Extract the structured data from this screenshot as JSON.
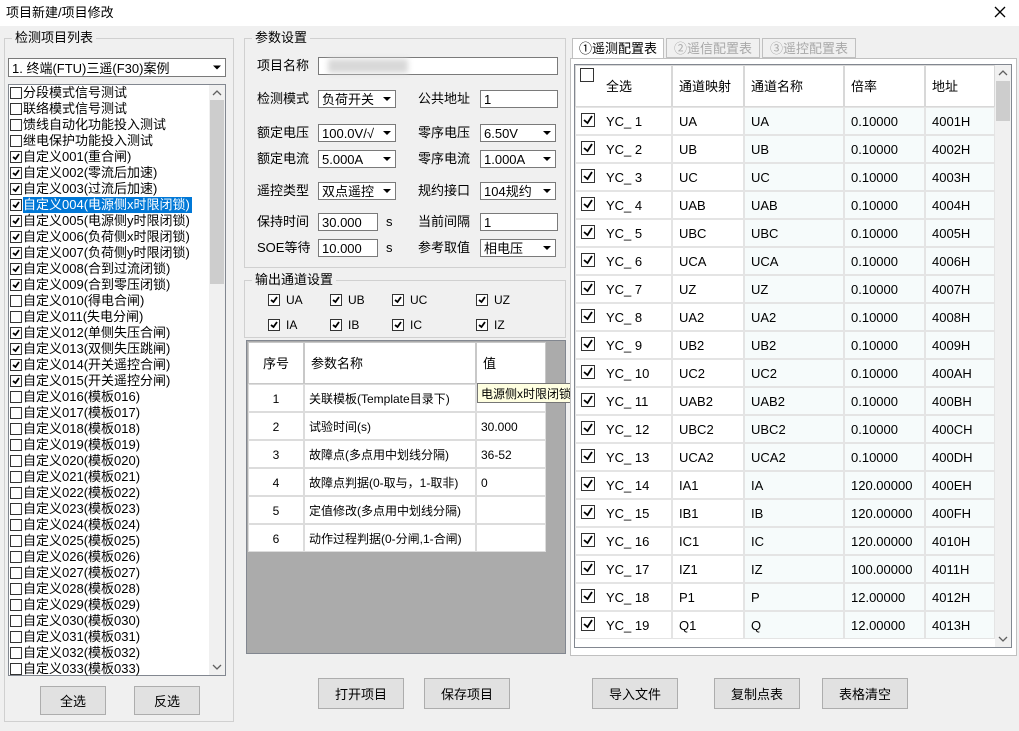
{
  "window": {
    "title": "项目新建/项目修改"
  },
  "item_list": {
    "title": "检测项目列表",
    "selector": "1. 终端(FTU)三遥(F30)案例",
    "selected_index": 7,
    "items": [
      {
        "label": "分段模式信号测试",
        "checked": false
      },
      {
        "label": "联络模式信号测试",
        "checked": false
      },
      {
        "label": "馈线自动化功能投入测试",
        "checked": false
      },
      {
        "label": "继电保护功能投入测试",
        "checked": false
      },
      {
        "label": "自定义001(重合闸)",
        "checked": true
      },
      {
        "label": "自定义002(零流后加速)",
        "checked": true
      },
      {
        "label": "自定义003(过流后加速)",
        "checked": true
      },
      {
        "label": "自定义004(电源侧x时限闭锁)",
        "checked": true
      },
      {
        "label": "自定义005(电源侧y时限闭锁)",
        "checked": true
      },
      {
        "label": "自定义006(负荷侧x时限闭锁)",
        "checked": true
      },
      {
        "label": "自定义007(负荷侧y时限闭锁)",
        "checked": true
      },
      {
        "label": "自定义008(合到过流闭锁)",
        "checked": true
      },
      {
        "label": "自定义009(合到零压闭锁)",
        "checked": true
      },
      {
        "label": "自定义010(得电合闸)",
        "checked": false
      },
      {
        "label": "自定义011(失电分闸)",
        "checked": false
      },
      {
        "label": "自定义012(单侧失压合闸)",
        "checked": true
      },
      {
        "label": "自定义013(双侧失压跳闸)",
        "checked": true
      },
      {
        "label": "自定义014(开关遥控合闸)",
        "checked": true
      },
      {
        "label": "自定义015(开关遥控分闸)",
        "checked": true
      },
      {
        "label": "自定义016(模板016)",
        "checked": false
      },
      {
        "label": "自定义017(模板017)",
        "checked": false
      },
      {
        "label": "自定义018(模板018)",
        "checked": false
      },
      {
        "label": "自定义019(模板019)",
        "checked": false
      },
      {
        "label": "自定义020(模板020)",
        "checked": false
      },
      {
        "label": "自定义021(模板021)",
        "checked": false
      },
      {
        "label": "自定义022(模板022)",
        "checked": false
      },
      {
        "label": "自定义023(模板023)",
        "checked": false
      },
      {
        "label": "自定义024(模板024)",
        "checked": false
      },
      {
        "label": "自定义025(模板025)",
        "checked": false
      },
      {
        "label": "自定义026(模板026)",
        "checked": false
      },
      {
        "label": "自定义027(模板027)",
        "checked": false
      },
      {
        "label": "自定义028(模板028)",
        "checked": false
      },
      {
        "label": "自定义029(模板029)",
        "checked": false
      },
      {
        "label": "自定义030(模板030)",
        "checked": false
      },
      {
        "label": "自定义031(模板031)",
        "checked": false
      },
      {
        "label": "自定义032(模板032)",
        "checked": false
      },
      {
        "label": "自定义033(模板033)",
        "checked": false
      }
    ],
    "buttons": [
      "全选",
      "反选"
    ]
  },
  "params": {
    "title": "参数设置",
    "fields": [
      {
        "label": "项目名称",
        "kind": "input"
      },
      {
        "label": "检测模式",
        "value": "负荷开关",
        "kind": "combo"
      },
      {
        "label": "公共地址",
        "value": "1",
        "kind": "input"
      },
      {
        "label": "额定电压",
        "value": "100.0V/√",
        "kind": "combo"
      },
      {
        "label": "零序电压",
        "value": "6.50V",
        "kind": "combo"
      },
      {
        "label": "额定电流",
        "value": "5.000A",
        "kind": "combo"
      },
      {
        "label": "零序电流",
        "value": "1.000A",
        "kind": "combo"
      },
      {
        "label": "遥控类型",
        "value": "双点遥控",
        "kind": "combo"
      },
      {
        "label": "规约接口",
        "value": "104规约",
        "kind": "combo"
      },
      {
        "label": "保持时间",
        "value": "30.000",
        "kind": "input",
        "unit": "s"
      },
      {
        "label": "当前间隔",
        "value": "1",
        "kind": "input"
      },
      {
        "label": "SOE等待",
        "value": "10.000",
        "kind": "input",
        "unit": "s"
      },
      {
        "label": "参考取值",
        "value": "相电压",
        "kind": "combo"
      }
    ]
  },
  "channels": {
    "title": "输出通道设置",
    "items": [
      {
        "label": "UA",
        "checked": true
      },
      {
        "label": "UB",
        "checked": true
      },
      {
        "label": "UC",
        "checked": true
      },
      {
        "label": "UZ",
        "checked": true
      },
      {
        "label": "IA",
        "checked": true
      },
      {
        "label": "IB",
        "checked": true
      },
      {
        "label": "IC",
        "checked": true
      },
      {
        "label": "IZ",
        "checked": true
      }
    ]
  },
  "param_table": {
    "columns": [
      "序号",
      "参数名称",
      "值"
    ],
    "rows": [
      [
        "1",
        "关联模板(Template目录下)"
      ],
      [
        "2",
        "试验时间(s)",
        "30.000"
      ],
      [
        "3",
        "故障点(多点用中划线分隔)",
        "36-52"
      ],
      [
        "4",
        "故障点判据(0-取与，1-取非)",
        "0"
      ],
      [
        "5",
        "定值修改(多点用中划线分隔)"
      ],
      [
        "6",
        "动作过程判据(0-分闸,1-合闸)"
      ]
    ],
    "tooltip": "电源侧x时限闭锁"
  },
  "actions": [
    "打开项目",
    "保存项目",
    "导入文件",
    "复制点表",
    "表格清空"
  ],
  "config": {
    "tabs": [
      {
        "label": "①遥测配置表",
        "active": true
      },
      {
        "label": "②遥信配置表",
        "active": false
      },
      {
        "label": "③遥控配置表",
        "active": false
      }
    ],
    "columns": [
      "全选",
      "通道映射",
      "通道名称",
      "倍率",
      "地址"
    ],
    "rows": [
      {
        "checked": true,
        "cells": [
          "YC_ 1",
          "UA",
          "UA",
          "0.10000",
          "4001H"
        ]
      },
      {
        "checked": true,
        "cells": [
          "YC_ 2",
          "UB",
          "UB",
          "0.10000",
          "4002H"
        ]
      },
      {
        "checked": true,
        "cells": [
          "YC_ 3",
          "UC",
          "UC",
          "0.10000",
          "4003H"
        ]
      },
      {
        "checked": true,
        "cells": [
          "YC_ 4",
          "UAB",
          "UAB",
          "0.10000",
          "4004H"
        ]
      },
      {
        "checked": true,
        "cells": [
          "YC_ 5",
          "UBC",
          "UBC",
          "0.10000",
          "4005H"
        ]
      },
      {
        "checked": true,
        "cells": [
          "YC_ 6",
          "UCA",
          "UCA",
          "0.10000",
          "4006H"
        ]
      },
      {
        "checked": true,
        "cells": [
          "YC_ 7",
          "UZ",
          "UZ",
          "0.10000",
          "4007H"
        ]
      },
      {
        "checked": true,
        "cells": [
          "YC_ 8",
          "UA2",
          "UA2",
          "0.10000",
          "4008H"
        ]
      },
      {
        "checked": true,
        "cells": [
          "YC_ 9",
          "UB2",
          "UB2",
          "0.10000",
          "4009H"
        ]
      },
      {
        "checked": true,
        "cells": [
          "YC_ 10",
          "UC2",
          "UC2",
          "0.10000",
          "400AH"
        ]
      },
      {
        "checked": true,
        "cells": [
          "YC_ 11",
          "UAB2",
          "UAB2",
          "0.10000",
          "400BH"
        ]
      },
      {
        "checked": true,
        "cells": [
          "YC_ 12",
          "UBC2",
          "UBC2",
          "0.10000",
          "400CH"
        ]
      },
      {
        "checked": true,
        "cells": [
          "YC_ 13",
          "UCA2",
          "UCA2",
          "0.10000",
          "400DH"
        ]
      },
      {
        "checked": true,
        "cells": [
          "YC_ 14",
          "IA1",
          "IA",
          "120.00000",
          "400EH"
        ]
      },
      {
        "checked": true,
        "cells": [
          "YC_ 15",
          "IB1",
          "IB",
          "120.00000",
          "400FH"
        ]
      },
      {
        "checked": true,
        "cells": [
          "YC_ 16",
          "IC1",
          "IC",
          "120.00000",
          "4010H"
        ]
      },
      {
        "checked": true,
        "cells": [
          "YC_ 17",
          "IZ1",
          "IZ",
          "100.00000",
          "4011H"
        ]
      },
      {
        "checked": true,
        "cells": [
          "YC_ 18",
          "P1",
          "P",
          "12.00000",
          "4012H"
        ]
      },
      {
        "checked": true,
        "cells": [
          "YC_ 19",
          "Q1",
          "Q",
          "12.00000",
          "4013H"
        ]
      }
    ]
  }
}
